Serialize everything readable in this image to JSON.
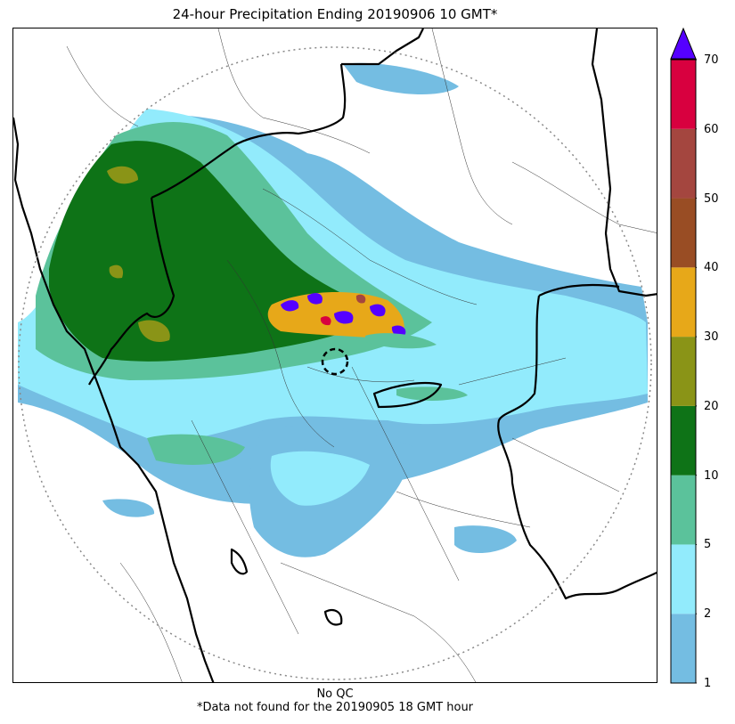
{
  "title": "24-hour Precipitation Ending 20190906 10 GMT*",
  "footer": {
    "qc": "No QC",
    "note": "*Data not found for the 20190905 18 GMT hour"
  },
  "colorbar": {
    "extend_color": "#5500ff",
    "bins": [
      {
        "from": 1,
        "to": 2,
        "color": "#74bde2"
      },
      {
        "from": 2,
        "to": 5,
        "color": "#92ebfc"
      },
      {
        "from": 5,
        "to": 10,
        "color": "#5bc29b"
      },
      {
        "from": 10,
        "to": 20,
        "color": "#0e7317"
      },
      {
        "from": 20,
        "to": 30,
        "color": "#8a9417"
      },
      {
        "from": 30,
        "to": 40,
        "color": "#e7a819"
      },
      {
        "from": 40,
        "to": 50,
        "color": "#994d24"
      },
      {
        "from": 50,
        "to": 60,
        "color": "#a4463f"
      },
      {
        "from": 60,
        "to": 70,
        "color": "#d8003f"
      }
    ],
    "tick_labels": [
      "1",
      "2",
      "5",
      "10",
      "20",
      "30",
      "40",
      "50",
      "60",
      "70"
    ]
  },
  "map_layers": {
    "radar_range_ring": "dotted circle",
    "radar_site_marker": "dashed circle"
  }
}
